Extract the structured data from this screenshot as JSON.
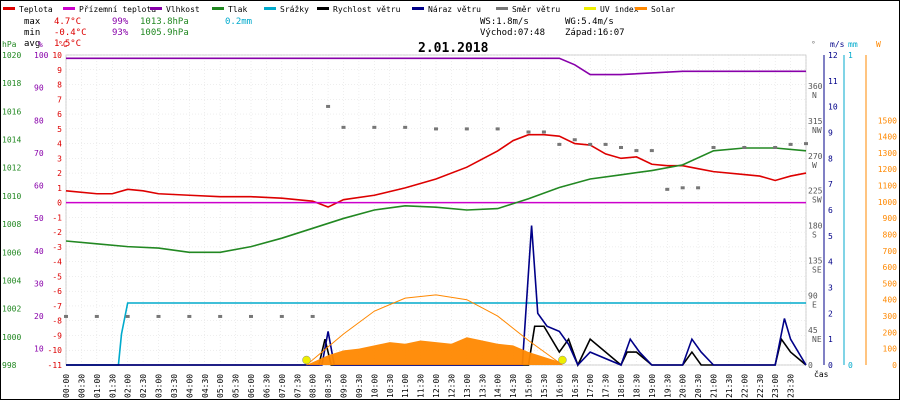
{
  "header": {
    "date": "2.01.2018",
    "legend": [
      {
        "label": "Teplota",
        "color": "#dd0000"
      },
      {
        "label": "Přízemní teplota",
        "color": "#cc00cc"
      },
      {
        "label": "Vlhkost",
        "color": "#8800aa"
      },
      {
        "label": "Tlak",
        "color": "#228822"
      },
      {
        "label": "Srážky",
        "color": "#00aacc"
      },
      {
        "label": "Rychlost větru",
        "color": "#000000"
      },
      {
        "label": "Náraz větru",
        "color": "#000088"
      },
      {
        "label": "Směr větru",
        "color": "#777777"
      },
      {
        "label": "UV index",
        "color": "#eeee00"
      },
      {
        "label": "Solar",
        "color": "#ff8800"
      }
    ],
    "stats": {
      "max_label": "max",
      "max_temp": "4.7°C",
      "max_hum": "99%",
      "max_press": "1013.8hPa",
      "max_rain": "0.2mm",
      "min_label": "min",
      "min_temp": "-0.4°C",
      "min_hum": "93%",
      "min_press": "1005.9hPa",
      "avg_label": "avg",
      "avg_temp": "1.5°C"
    },
    "wind": {
      "ws": "WS:1.8m/s",
      "wg": "WG:5.4m/s",
      "sunrise": "Východ:07:48",
      "sunset": "Západ:16:07"
    }
  },
  "axes": {
    "hpa_label": "hPa",
    "pct_label": "%",
    "c_label": "°C",
    "dir_label": "°",
    "ms_label": "m/s",
    "mm_label": "mm",
    "w_label": "W",
    "cas_label": "čas",
    "hpa_ticks": [
      "1020",
      "1018",
      "1016",
      "1014",
      "1012",
      "1010",
      "1008",
      "1006",
      "1004",
      "1002",
      "1000",
      "998"
    ],
    "pct_ticks": [
      "100",
      "90",
      "80",
      "70",
      "60",
      "50",
      "40",
      "30",
      "20",
      "10"
    ],
    "c_ticks": [
      "10",
      "9",
      "8",
      "7",
      "6",
      "5",
      "4",
      "3",
      "2",
      "1",
      "0",
      "-1",
      "-2",
      "-3",
      "-4",
      "-5",
      "-6",
      "-7",
      "-8",
      "-9",
      "-10",
      "-11"
    ],
    "dir_ticks": [
      {
        "deg": "360",
        "card": "N"
      },
      {
        "deg": "315",
        "card": "NW"
      },
      {
        "deg": "270",
        "card": "W"
      },
      {
        "deg": "225",
        "card": "SW"
      },
      {
        "deg": "180",
        "card": "S"
      },
      {
        "deg": "135",
        "card": "SE"
      },
      {
        "deg": "90",
        "card": "E"
      },
      {
        "deg": "45",
        "card": "NE"
      },
      {
        "deg": "0",
        "card": ""
      }
    ],
    "ms_ticks": [
      "12",
      "11",
      "10",
      "9",
      "8",
      "7",
      "6",
      "5",
      "4",
      "3",
      "2",
      "1",
      "0"
    ],
    "mm_ticks": [
      "1",
      "0"
    ],
    "w_ticks": [
      "1500",
      "1400",
      "1300",
      "1200",
      "1100",
      "1000",
      "900",
      "800",
      "700",
      "600",
      "500",
      "400",
      "300",
      "200",
      "100",
      "0"
    ],
    "time_ticks": [
      "00:00",
      "00:30",
      "01:00",
      "01:30",
      "02:00",
      "02:30",
      "03:00",
      "03:30",
      "04:00",
      "04:30",
      "05:00",
      "05:30",
      "06:00",
      "06:30",
      "07:00",
      "07:30",
      "08:00",
      "08:30",
      "09:00",
      "09:30",
      "10:00",
      "10:30",
      "11:00",
      "11:30",
      "12:00",
      "12:30",
      "13:00",
      "13:30",
      "14:00",
      "14:30",
      "15:00",
      "15:30",
      "16:00",
      "16:30",
      "17:00",
      "17:30",
      "18:00",
      "18:30",
      "19:00",
      "19:30",
      "20:00",
      "20:30",
      "21:00",
      "21:30",
      "22:00",
      "22:30",
      "23:00",
      "23:30"
    ]
  },
  "chart_data": {
    "type": "line",
    "title": "2.01.2018",
    "x_unit": "hours",
    "series": [
      {
        "name": "Teplota",
        "unit": "°C",
        "color": "#dd0000",
        "x": [
          0,
          1,
          1.5,
          2,
          2.5,
          3,
          4,
          5,
          6,
          7,
          7.5,
          8,
          8.5,
          9,
          10,
          11,
          12,
          13,
          14,
          14.5,
          15,
          15.5,
          16,
          16.5,
          17,
          17.5,
          18,
          18.5,
          19,
          19.5,
          20,
          20.5,
          21,
          22,
          22.5,
          23,
          23.5,
          24
        ],
        "y": [
          0.8,
          0.6,
          0.6,
          0.9,
          0.8,
          0.6,
          0.5,
          0.4,
          0.4,
          0.3,
          0.2,
          0.1,
          -0.3,
          0.2,
          0.5,
          1.0,
          1.6,
          2.4,
          3.5,
          4.2,
          4.6,
          4.6,
          4.5,
          4.0,
          3.9,
          3.3,
          3.0,
          3.1,
          2.6,
          2.5,
          2.5,
          2.3,
          2.1,
          1.9,
          1.8,
          1.5,
          1.8,
          2.0
        ]
      },
      {
        "name": "Přízemní teplota",
        "unit": "°C",
        "color": "#cc00cc",
        "x": [
          0,
          24
        ],
        "y": [
          0,
          0
        ]
      },
      {
        "name": "Vlhkost",
        "unit": "%",
        "color": "#8800aa",
        "x": [
          0,
          2,
          3,
          6,
          9,
          12,
          15,
          16,
          16.5,
          17,
          18,
          20,
          22,
          24
        ],
        "y": [
          99,
          99,
          99,
          99,
          99,
          99,
          99,
          99,
          97,
          94,
          94,
          95,
          95,
          95
        ]
      },
      {
        "name": "Tlak",
        "unit": "hPa",
        "color": "#228822",
        "x": [
          0,
          1,
          2,
          3,
          4,
          5,
          6,
          7,
          8,
          9,
          10,
          11,
          12,
          13,
          14,
          15,
          16,
          17,
          18,
          19,
          20,
          21,
          22,
          23,
          24
        ],
        "y": [
          1006.8,
          1006.6,
          1006.4,
          1006.3,
          1006.0,
          1006.0,
          1006.4,
          1007.0,
          1007.7,
          1008.4,
          1009.0,
          1009.3,
          1009.2,
          1009.0,
          1009.1,
          1009.8,
          1010.6,
          1011.2,
          1011.5,
          1011.8,
          1012.2,
          1013.2,
          1013.4,
          1013.4,
          1013.2
        ]
      },
      {
        "name": "Srážky",
        "unit": "mm",
        "color": "#00aacc",
        "x": [
          0,
          1.7,
          1.8,
          2.0,
          24
        ],
        "y": [
          0,
          0,
          0.1,
          0.2,
          0.2
        ]
      },
      {
        "name": "Rychlost větru",
        "unit": "m/s",
        "color": "#000000",
        "x": [
          0,
          8.2,
          8.4,
          8.6,
          15.0,
          15.2,
          15.5,
          16.0,
          16.3,
          16.6,
          17.0,
          18.0,
          18.2,
          18.5,
          19.0,
          20.0,
          20.3,
          20.6,
          21.0,
          23.0,
          23.2,
          23.5,
          24
        ],
        "y": [
          0,
          0,
          1,
          0,
          0,
          1.5,
          1.5,
          0.5,
          1.0,
          0,
          1.0,
          0,
          0.5,
          0.5,
          0,
          0,
          0.5,
          0,
          0,
          0,
          1.0,
          0.5,
          0
        ]
      },
      {
        "name": "Náraz větru",
        "unit": "m/s",
        "color": "#000088",
        "x": [
          0,
          8.3,
          8.5,
          8.7,
          14.8,
          15.1,
          15.3,
          15.6,
          16.0,
          16.3,
          16.6,
          17.0,
          18.0,
          18.3,
          18.6,
          19.0,
          20.0,
          20.3,
          20.6,
          21.0,
          23.0,
          23.3,
          23.5,
          24
        ],
        "y": [
          0,
          0,
          1.3,
          0,
          0,
          5.4,
          2.0,
          1.5,
          1.3,
          0.8,
          0,
          0.5,
          0,
          1.0,
          0.5,
          0,
          0,
          1.0,
          0.5,
          0,
          0,
          1.8,
          1.0,
          0
        ]
      },
      {
        "name": "Směr větru",
        "unit": "°",
        "color": "#777777",
        "x": [
          0,
          1,
          2,
          3,
          4,
          5,
          6,
          7,
          8,
          8.5,
          9,
          10,
          11,
          12,
          13,
          14,
          15,
          15.5,
          16,
          16.5,
          17,
          17.5,
          18,
          18.5,
          19,
          19.5,
          20,
          20.5,
          21,
          22,
          23,
          23.5,
          24
        ],
        "y": [
          62,
          62,
          62,
          62,
          62,
          62,
          62,
          62,
          62,
          333,
          306,
          306,
          306,
          304,
          304,
          304,
          300,
          300,
          284,
          290,
          284,
          284,
          280,
          276,
          276,
          226,
          228,
          228,
          280,
          280,
          280,
          284,
          285
        ]
      },
      {
        "name": "Solar",
        "unit": "W",
        "color": "#ff8800",
        "x": [
          7.8,
          8.5,
          9,
          9.5,
          10,
          10.5,
          11,
          11.5,
          12,
          12.5,
          13,
          13.5,
          14,
          14.5,
          15,
          15.5,
          16,
          16.1
        ],
        "y": [
          0,
          60,
          90,
          100,
          120,
          140,
          130,
          150,
          140,
          130,
          170,
          150,
          130,
          120,
          80,
          50,
          20,
          0
        ]
      },
      {
        "name": "Solar max",
        "unit": "W",
        "color": "#ff8800",
        "x": [
          7.8,
          9,
          10,
          11,
          12,
          13,
          14,
          15,
          16.1
        ],
        "y": [
          0,
          190,
          330,
          410,
          430,
          400,
          300,
          150,
          0
        ]
      }
    ]
  }
}
